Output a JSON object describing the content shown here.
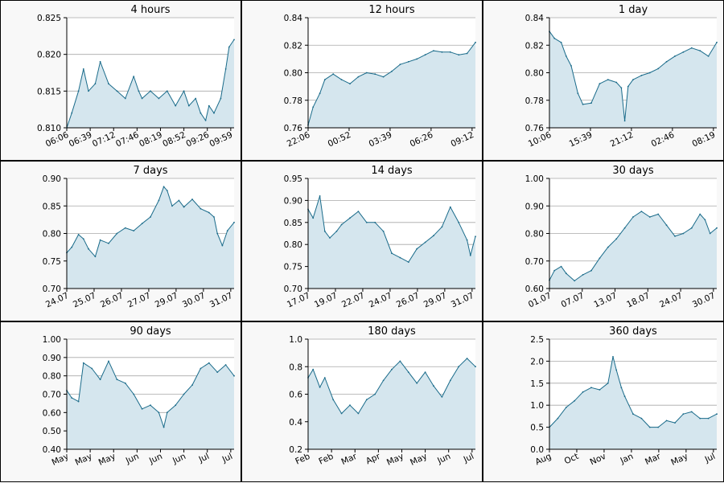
{
  "colors": {
    "line": "#1a6b8a",
    "fill": "#d5e6ee",
    "grid": "#a8a8a8",
    "panel_bg": "#f8f8f8"
  },
  "chart_data": [
    {
      "type": "area",
      "title": "4 hours",
      "ylim": [
        0.81,
        0.825
      ],
      "yticks": [
        "0.810",
        "0.815",
        "0.820",
        "0.825"
      ],
      "xticks": [
        "06:06",
        "06:39",
        "07:12",
        "07:46",
        "08:19",
        "08:52",
        "09:26",
        "09:59"
      ],
      "x": [
        0,
        0.03,
        0.07,
        0.1,
        0.13,
        0.17,
        0.2,
        0.25,
        0.3,
        0.35,
        0.4,
        0.43,
        0.45,
        0.5,
        0.55,
        0.6,
        0.65,
        0.7,
        0.73,
        0.77,
        0.8,
        0.83,
        0.85,
        0.88,
        0.92,
        0.95,
        0.97,
        1.0
      ],
      "values": [
        0.81,
        0.812,
        0.815,
        0.818,
        0.815,
        0.816,
        0.819,
        0.816,
        0.815,
        0.814,
        0.817,
        0.815,
        0.814,
        0.815,
        0.814,
        0.815,
        0.813,
        0.815,
        0.813,
        0.814,
        0.812,
        0.811,
        0.813,
        0.812,
        0.814,
        0.818,
        0.821,
        0.822
      ]
    },
    {
      "type": "area",
      "title": "12 hours",
      "ylim": [
        0.76,
        0.84
      ],
      "yticks": [
        "0.76",
        "0.78",
        "0.80",
        "0.82",
        "0.84"
      ],
      "xticks": [
        "22:06",
        "00:52",
        "03:39",
        "06:26",
        "09:12"
      ],
      "x": [
        0,
        0.03,
        0.07,
        0.1,
        0.15,
        0.2,
        0.25,
        0.3,
        0.35,
        0.4,
        0.45,
        0.5,
        0.55,
        0.6,
        0.65,
        0.7,
        0.75,
        0.8,
        0.85,
        0.9,
        0.95,
        1.0
      ],
      "values": [
        0.762,
        0.775,
        0.785,
        0.795,
        0.799,
        0.795,
        0.792,
        0.797,
        0.8,
        0.799,
        0.797,
        0.801,
        0.806,
        0.808,
        0.81,
        0.813,
        0.816,
        0.815,
        0.815,
        0.813,
        0.814,
        0.822
      ]
    },
    {
      "type": "area",
      "title": "1 day",
      "ylim": [
        0.76,
        0.84
      ],
      "yticks": [
        "0.76",
        "0.78",
        "0.80",
        "0.82",
        "0.84"
      ],
      "xticks": [
        "10:06",
        "15:39",
        "21:12",
        "02:46",
        "08:19"
      ],
      "x": [
        0,
        0.03,
        0.07,
        0.1,
        0.13,
        0.17,
        0.2,
        0.25,
        0.3,
        0.35,
        0.4,
        0.43,
        0.45,
        0.47,
        0.5,
        0.55,
        0.6,
        0.65,
        0.7,
        0.75,
        0.8,
        0.85,
        0.9,
        0.95,
        1.0
      ],
      "values": [
        0.83,
        0.825,
        0.822,
        0.812,
        0.805,
        0.785,
        0.777,
        0.778,
        0.792,
        0.795,
        0.793,
        0.789,
        0.765,
        0.79,
        0.795,
        0.798,
        0.8,
        0.803,
        0.808,
        0.812,
        0.815,
        0.818,
        0.816,
        0.812,
        0.822
      ]
    },
    {
      "type": "area",
      "title": "7 days",
      "ylim": [
        0.7,
        0.9
      ],
      "yticks": [
        "0.70",
        "0.75",
        "0.80",
        "0.85",
        "0.90"
      ],
      "xticks": [
        "24.07",
        "25.07",
        "26.07",
        "27.07",
        "29.07",
        "30.07",
        "31.07"
      ],
      "x": [
        0,
        0.03,
        0.07,
        0.1,
        0.13,
        0.17,
        0.2,
        0.25,
        0.3,
        0.35,
        0.4,
        0.45,
        0.5,
        0.55,
        0.58,
        0.6,
        0.63,
        0.67,
        0.7,
        0.75,
        0.8,
        0.85,
        0.88,
        0.9,
        0.93,
        0.96,
        1.0
      ],
      "values": [
        0.765,
        0.775,
        0.798,
        0.79,
        0.772,
        0.758,
        0.788,
        0.782,
        0.8,
        0.81,
        0.805,
        0.818,
        0.83,
        0.86,
        0.885,
        0.878,
        0.85,
        0.86,
        0.848,
        0.862,
        0.845,
        0.838,
        0.83,
        0.8,
        0.778,
        0.805,
        0.82
      ]
    },
    {
      "type": "area",
      "title": "14 days",
      "ylim": [
        0.7,
        0.95
      ],
      "yticks": [
        "0.70",
        "0.75",
        "0.80",
        "0.85",
        "0.90",
        "0.95"
      ],
      "xticks": [
        "17.07",
        "19.07",
        "22.07",
        "24.07",
        "26.07",
        "29.07",
        "31.07"
      ],
      "x": [
        0,
        0.03,
        0.07,
        0.1,
        0.13,
        0.17,
        0.2,
        0.25,
        0.3,
        0.35,
        0.4,
        0.45,
        0.5,
        0.55,
        0.6,
        0.65,
        0.7,
        0.75,
        0.8,
        0.85,
        0.9,
        0.95,
        0.97,
        1.0
      ],
      "values": [
        0.88,
        0.86,
        0.91,
        0.83,
        0.815,
        0.83,
        0.845,
        0.86,
        0.875,
        0.85,
        0.85,
        0.83,
        0.78,
        0.77,
        0.76,
        0.79,
        0.805,
        0.82,
        0.84,
        0.885,
        0.85,
        0.81,
        0.775,
        0.818
      ]
    },
    {
      "type": "area",
      "title": "30 days",
      "ylim": [
        0.6,
        1.0
      ],
      "yticks": [
        "0.60",
        "0.70",
        "0.80",
        "0.90",
        "1.00"
      ],
      "xticks": [
        "01.07",
        "07.07",
        "13.07",
        "18.07",
        "24.07",
        "30.07"
      ],
      "x": [
        0,
        0.03,
        0.07,
        0.1,
        0.15,
        0.2,
        0.25,
        0.3,
        0.35,
        0.4,
        0.45,
        0.5,
        0.55,
        0.6,
        0.65,
        0.7,
        0.75,
        0.8,
        0.85,
        0.9,
        0.93,
        0.96,
        1.0
      ],
      "values": [
        0.63,
        0.665,
        0.68,
        0.655,
        0.628,
        0.65,
        0.665,
        0.71,
        0.75,
        0.78,
        0.82,
        0.86,
        0.88,
        0.86,
        0.87,
        0.83,
        0.79,
        0.8,
        0.82,
        0.87,
        0.85,
        0.8,
        0.82
      ]
    },
    {
      "type": "area",
      "title": "90 days",
      "ylim": [
        0.4,
        1.0
      ],
      "yticks": [
        "0.40",
        "0.50",
        "0.60",
        "0.70",
        "0.80",
        "0.90",
        "1.00"
      ],
      "xticks": [
        "May",
        "May",
        "May",
        "Jun",
        "Jun",
        "Jun",
        "Jul",
        "Jul"
      ],
      "x": [
        0,
        0.03,
        0.07,
        0.1,
        0.15,
        0.2,
        0.25,
        0.3,
        0.35,
        0.4,
        0.45,
        0.5,
        0.55,
        0.58,
        0.6,
        0.65,
        0.7,
        0.75,
        0.8,
        0.85,
        0.9,
        0.95,
        1.0
      ],
      "values": [
        0.72,
        0.68,
        0.66,
        0.87,
        0.84,
        0.78,
        0.88,
        0.78,
        0.76,
        0.7,
        0.62,
        0.64,
        0.6,
        0.52,
        0.6,
        0.64,
        0.7,
        0.75,
        0.84,
        0.87,
        0.82,
        0.86,
        0.8
      ]
    },
    {
      "type": "area",
      "title": "180 days",
      "ylim": [
        0.2,
        1.0
      ],
      "yticks": [
        "0.2",
        "0.4",
        "0.6",
        "0.8",
        "1.0"
      ],
      "xticks": [
        "Feb",
        "Feb",
        "Mar",
        "Apr",
        "May",
        "May",
        "Jun",
        "Jul"
      ],
      "x": [
        0,
        0.03,
        0.07,
        0.1,
        0.15,
        0.2,
        0.25,
        0.3,
        0.35,
        0.4,
        0.45,
        0.5,
        0.55,
        0.6,
        0.65,
        0.7,
        0.75,
        0.8,
        0.85,
        0.9,
        0.95,
        1.0
      ],
      "values": [
        0.72,
        0.78,
        0.65,
        0.72,
        0.56,
        0.46,
        0.52,
        0.46,
        0.56,
        0.6,
        0.7,
        0.78,
        0.84,
        0.76,
        0.68,
        0.76,
        0.66,
        0.58,
        0.7,
        0.8,
        0.86,
        0.8
      ]
    },
    {
      "type": "area",
      "title": "360 days",
      "ylim": [
        0.0,
        2.5
      ],
      "yticks": [
        "0.0",
        "0.5",
        "1.0",
        "1.5",
        "2.0",
        "2.5"
      ],
      "xticks": [
        "Aug",
        "Oct",
        "Nov",
        "Jan",
        "Mar",
        "May",
        "Jul"
      ],
      "x": [
        0,
        0.05,
        0.1,
        0.15,
        0.2,
        0.25,
        0.3,
        0.35,
        0.38,
        0.4,
        0.43,
        0.45,
        0.5,
        0.55,
        0.6,
        0.65,
        0.7,
        0.75,
        0.8,
        0.85,
        0.9,
        0.95,
        1.0
      ],
      "values": [
        0.5,
        0.7,
        0.95,
        1.1,
        1.3,
        1.4,
        1.35,
        1.5,
        2.1,
        1.8,
        1.4,
        1.2,
        0.8,
        0.7,
        0.5,
        0.5,
        0.65,
        0.6,
        0.8,
        0.85,
        0.7,
        0.7,
        0.8
      ]
    }
  ]
}
